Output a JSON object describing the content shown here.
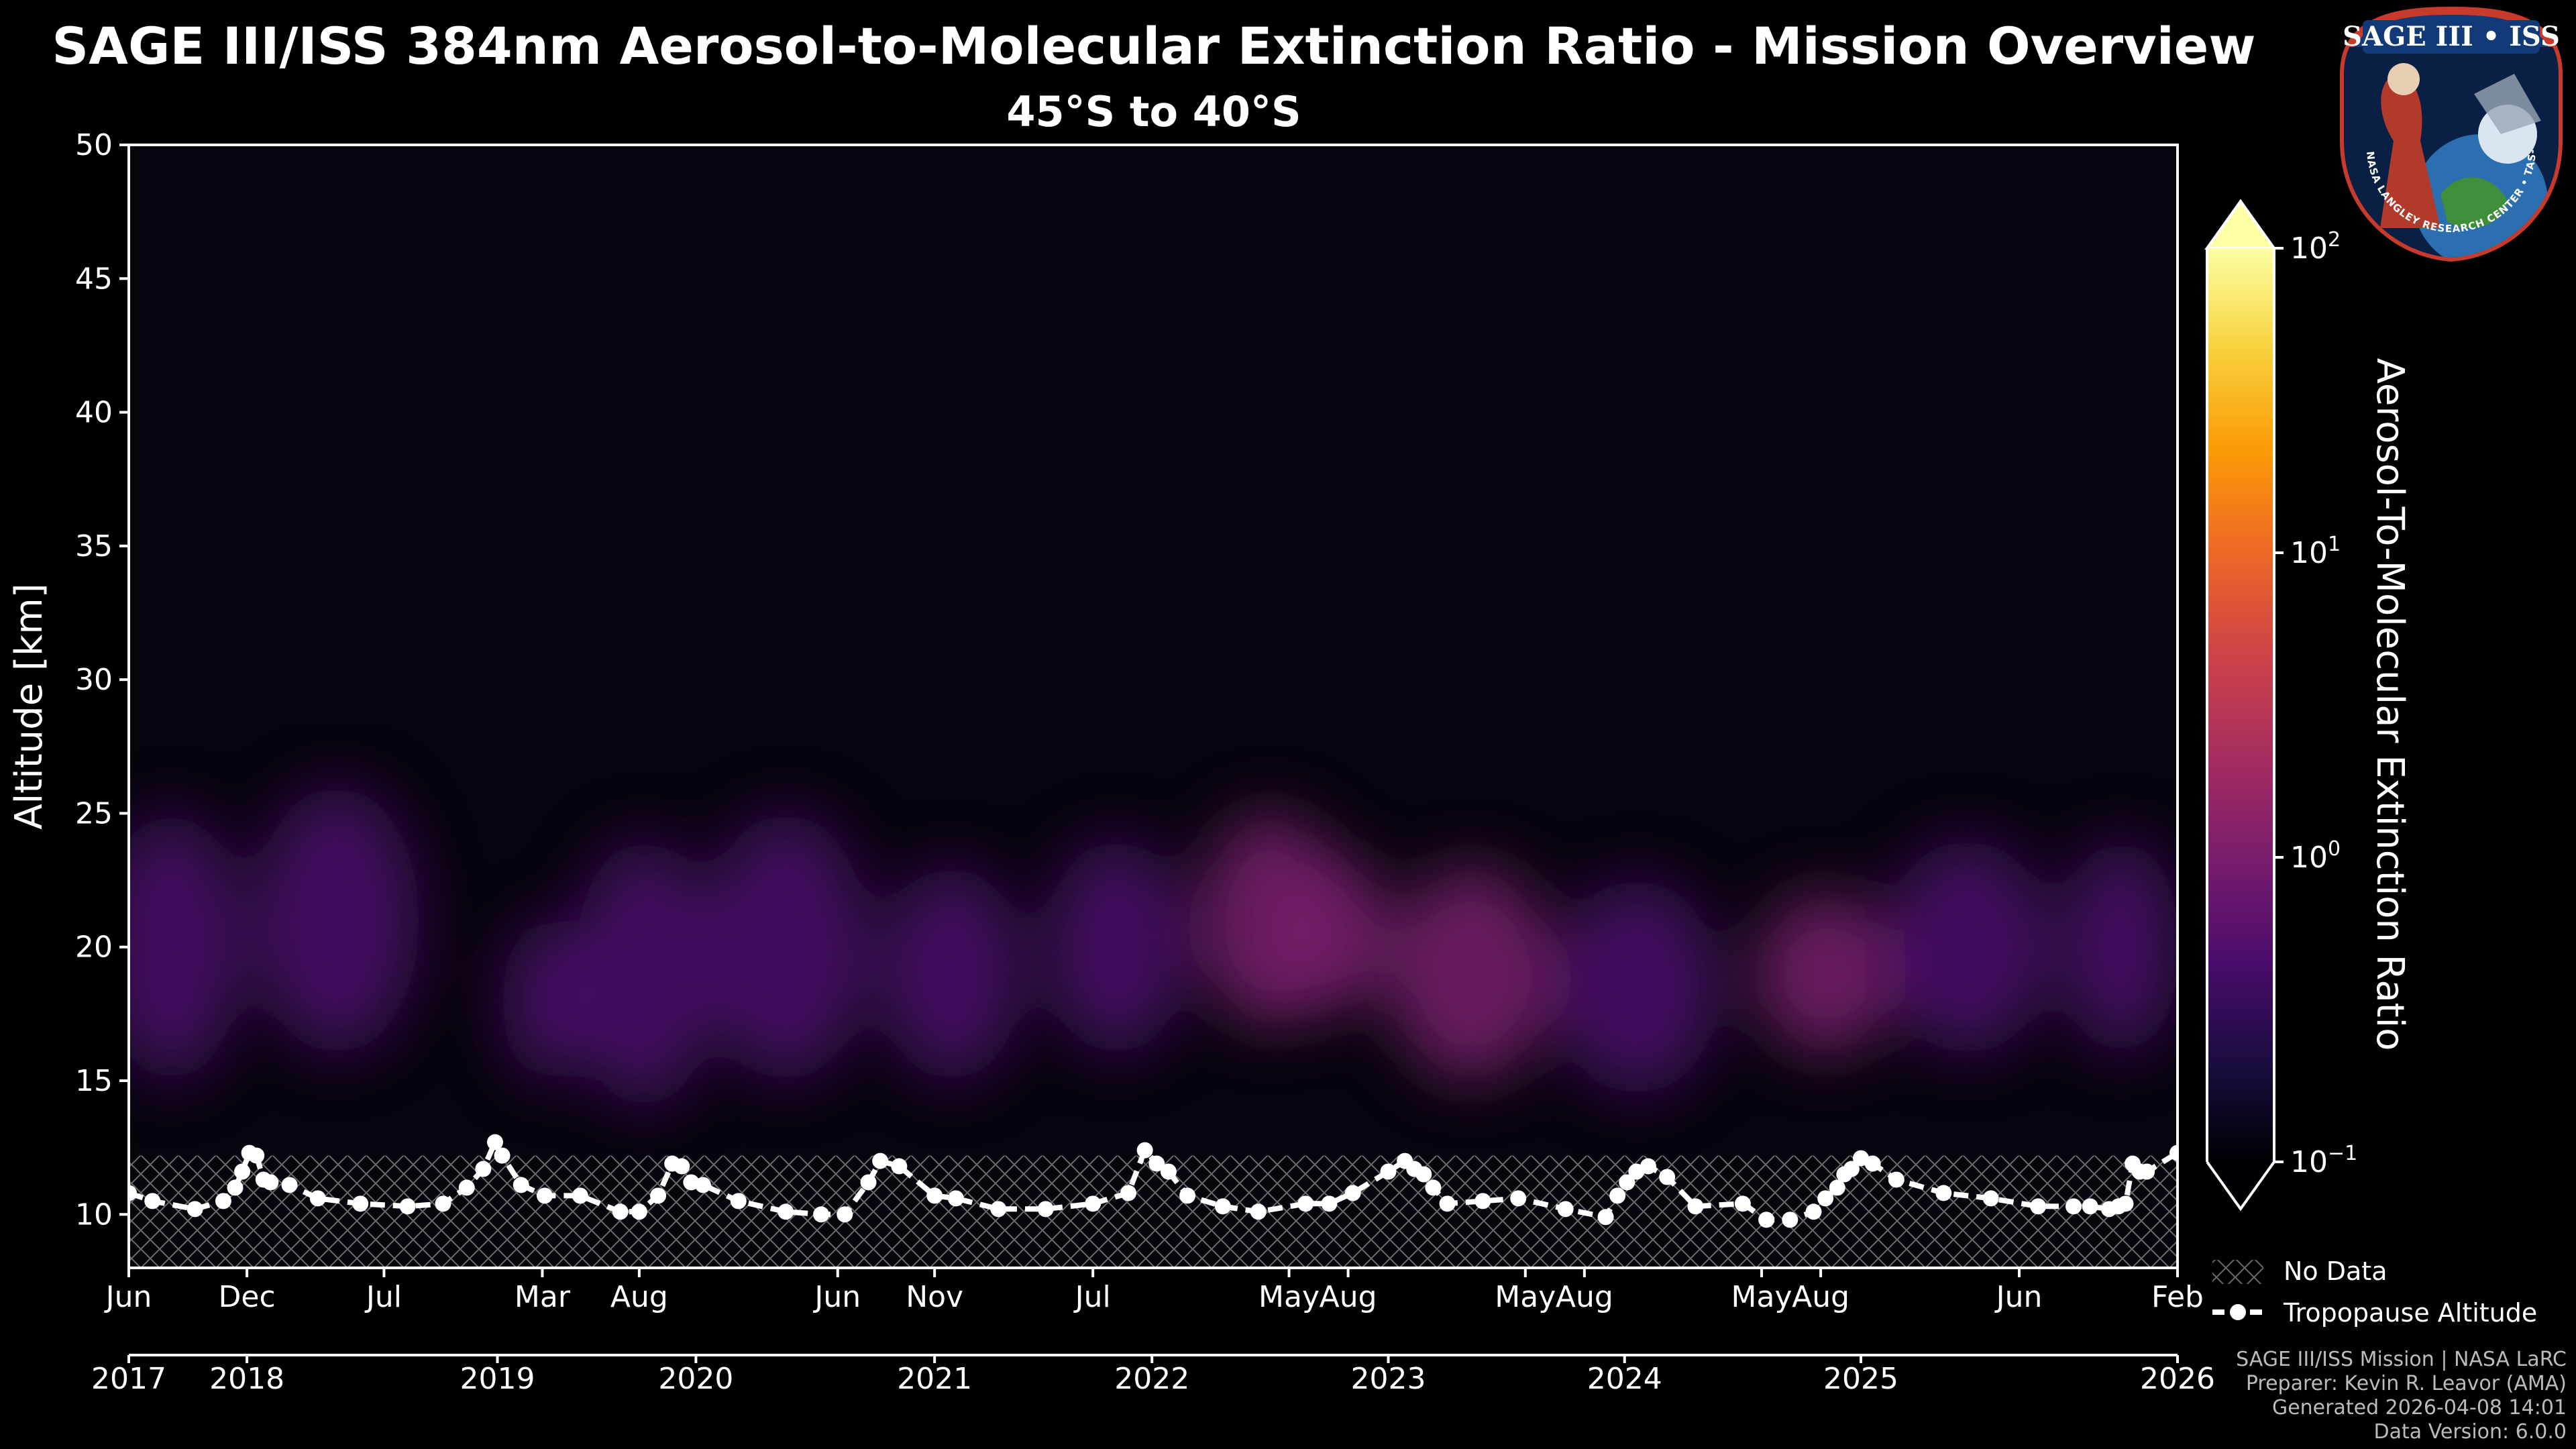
{
  "chart_data": {
    "type": "heatmap",
    "title": "SAGE III/ISS 384nm Aerosol-to-Molecular Extinction Ratio - Mission Overview",
    "subtitle": "45°S to 40°S",
    "ylabel": "Altitude [km]",
    "ylim": [
      8,
      50
    ],
    "yticks": [
      10,
      15,
      20,
      25,
      30,
      35,
      40,
      45,
      50
    ],
    "xlim": [
      2017.42,
      2026.09
    ],
    "month_ticks": [
      {
        "t": 2017.42,
        "label": "Jun"
      },
      {
        "t": 2017.92,
        "label": "Dec"
      },
      {
        "t": 2018.5,
        "label": "Jul"
      },
      {
        "t": 2019.17,
        "label": "Mar"
      },
      {
        "t": 2019.58,
        "label": "Aug"
      },
      {
        "t": 2020.42,
        "label": "Jun"
      },
      {
        "t": 2020.83,
        "label": "Nov"
      },
      {
        "t": 2021.5,
        "label": "Jul"
      },
      {
        "t": 2022.33,
        "label": "May"
      },
      {
        "t": 2022.58,
        "label": "Aug"
      },
      {
        "t": 2023.33,
        "label": "May"
      },
      {
        "t": 2023.58,
        "label": "Aug"
      },
      {
        "t": 2024.33,
        "label": "May"
      },
      {
        "t": 2024.58,
        "label": "Aug"
      },
      {
        "t": 2025.42,
        "label": "Jun"
      },
      {
        "t": 2026.09,
        "label": "Feb"
      }
    ],
    "year_ticks": [
      {
        "t": 2017.42,
        "label": "2017"
      },
      {
        "t": 2017.92,
        "label": "2018"
      },
      {
        "t": 2018.98,
        "label": "2019"
      },
      {
        "t": 2019.82,
        "label": "2020"
      },
      {
        "t": 2020.83,
        "label": "2021"
      },
      {
        "t": 2021.75,
        "label": "2022"
      },
      {
        "t": 2022.75,
        "label": "2023"
      },
      {
        "t": 2023.75,
        "label": "2024"
      },
      {
        "t": 2024.75,
        "label": "2025"
      },
      {
        "t": 2026.09,
        "label": "2026"
      }
    ],
    "colorbar": {
      "label": "Aerosol-To-Molecular Extinction Ratio",
      "scale": "log",
      "vmin": 0.1,
      "vmax": 100,
      "ticks": [
        {
          "base": "10",
          "exp": "2"
        },
        {
          "base": "10",
          "exp": "1"
        },
        {
          "base": "10",
          "exp": "0"
        },
        {
          "base": "10",
          "exp": "−1"
        }
      ],
      "tick_values": [
        100,
        10,
        1,
        0.1
      ],
      "extend": "both"
    },
    "no_data_below_km": 12.2,
    "aerosol_layers": [
      {
        "t": 2017.6,
        "z": 20,
        "width_yr": 0.3,
        "thick_km": 5,
        "peak": 0.25
      },
      {
        "t": 2018.3,
        "z": 21,
        "width_yr": 0.35,
        "thick_km": 5,
        "peak": 0.28
      },
      {
        "t": 2019.2,
        "z": 18,
        "width_yr": 0.2,
        "thick_km": 3,
        "peak": 0.35
      },
      {
        "t": 2019.6,
        "z": 19,
        "width_yr": 0.3,
        "thick_km": 5,
        "peak": 0.35
      },
      {
        "t": 2020.2,
        "z": 20,
        "width_yr": 0.35,
        "thick_km": 5,
        "peak": 0.45
      },
      {
        "t": 2020.9,
        "z": 19,
        "width_yr": 0.3,
        "thick_km": 4,
        "peak": 0.35
      },
      {
        "t": 2021.6,
        "z": 20,
        "width_yr": 0.3,
        "thick_km": 4,
        "peak": 0.35
      },
      {
        "t": 2022.25,
        "z": 21,
        "width_yr": 0.3,
        "thick_km": 4,
        "peak": 0.6
      },
      {
        "t": 2022.5,
        "z": 20.5,
        "width_yr": 0.25,
        "thick_km": 3,
        "peak": 0.8
      },
      {
        "t": 2023.1,
        "z": 19,
        "width_yr": 0.35,
        "thick_km": 4,
        "peak": 0.5
      },
      {
        "t": 2023.8,
        "z": 18.5,
        "width_yr": 0.35,
        "thick_km": 4,
        "peak": 0.35
      },
      {
        "t": 2024.6,
        "z": 19,
        "width_yr": 0.3,
        "thick_km": 3,
        "peak": 0.55
      },
      {
        "t": 2025.2,
        "z": 20,
        "width_yr": 0.35,
        "thick_km": 4,
        "peak": 0.45
      },
      {
        "t": 2025.85,
        "z": 20,
        "width_yr": 0.25,
        "thick_km": 4,
        "peak": 0.35
      }
    ],
    "tropopause": {
      "label": "Tropopause Altitude",
      "t": [
        2017.42,
        2017.52,
        2017.7,
        2017.82,
        2017.87,
        2017.9,
        2017.93,
        2017.96,
        2017.99,
        2018.02,
        2018.1,
        2018.22,
        2018.4,
        2018.6,
        2018.75,
        2018.85,
        2018.92,
        2018.97,
        2019.0,
        2019.08,
        2019.18,
        2019.33,
        2019.5,
        2019.58,
        2019.66,
        2019.72,
        2019.76,
        2019.8,
        2019.85,
        2020.0,
        2020.2,
        2020.35,
        2020.45,
        2020.55,
        2020.6,
        2020.68,
        2020.83,
        2020.92,
        2021.1,
        2021.3,
        2021.5,
        2021.65,
        2021.72,
        2021.77,
        2021.82,
        2021.9,
        2022.05,
        2022.2,
        2022.4,
        2022.5,
        2022.6,
        2022.75,
        2022.82,
        2022.86,
        2022.9,
        2022.94,
        2023.0,
        2023.15,
        2023.3,
        2023.5,
        2023.67,
        2023.72,
        2023.76,
        2023.8,
        2023.85,
        2023.93,
        2024.05,
        2024.25,
        2024.35,
        2024.45,
        2024.55,
        2024.6,
        2024.65,
        2024.68,
        2024.71,
        2024.75,
        2024.8,
        2024.9,
        2025.1,
        2025.3,
        2025.5,
        2025.65,
        2025.72,
        2025.8,
        2025.84,
        2025.87,
        2025.9,
        2025.93,
        2025.96,
        2026.09
      ],
      "z": [
        10.8,
        10.5,
        10.2,
        10.5,
        11.0,
        11.6,
        12.3,
        12.2,
        11.3,
        11.2,
        11.1,
        10.6,
        10.4,
        10.3,
        10.4,
        11.0,
        11.7,
        12.7,
        12.2,
        11.1,
        10.7,
        10.7,
        10.1,
        10.1,
        10.7,
        11.9,
        11.8,
        11.2,
        11.1,
        10.5,
        10.1,
        10.0,
        10.0,
        11.2,
        12.0,
        11.8,
        10.7,
        10.6,
        10.2,
        10.2,
        10.4,
        10.8,
        12.4,
        11.9,
        11.6,
        10.7,
        10.3,
        10.1,
        10.4,
        10.4,
        10.8,
        11.6,
        12.0,
        11.7,
        11.5,
        11.0,
        10.4,
        10.5,
        10.6,
        10.2,
        9.9,
        10.7,
        11.2,
        11.6,
        11.8,
        11.4,
        10.3,
        10.4,
        9.8,
        9.8,
        10.1,
        10.6,
        11.0,
        11.5,
        11.7,
        12.1,
        11.9,
        11.3,
        10.8,
        10.6,
        10.3,
        10.3,
        10.3,
        10.2,
        10.3,
        10.4,
        11.9,
        11.6,
        11.6,
        12.3
      ]
    }
  },
  "legend": {
    "no_data": "No Data",
    "tropopause": "Tropopause Altitude"
  },
  "logo": {
    "top_text": "SAGE III • ISS",
    "bottom_text": "BALL • NASA LANGLEY RESEARCH CENTER • TAS-I • ESA"
  },
  "footer": {
    "line1": "SAGE III/ISS Mission | NASA LaRC",
    "line2": "Preparer: Kevin R. Leavor (AMA)",
    "line3": "Generated 2026-04-08 14:01",
    "line4": "Data Version: 6.0.0"
  },
  "colors": {
    "background": "#000000",
    "colormap": [
      "#000004",
      "#1b0c41",
      "#4a0c6b",
      "#781c6d",
      "#a52c60",
      "#cf4446",
      "#ed6925",
      "#fb9b06",
      "#f7d13d",
      "#fcffa4"
    ],
    "tropopause": "#ffffff"
  }
}
